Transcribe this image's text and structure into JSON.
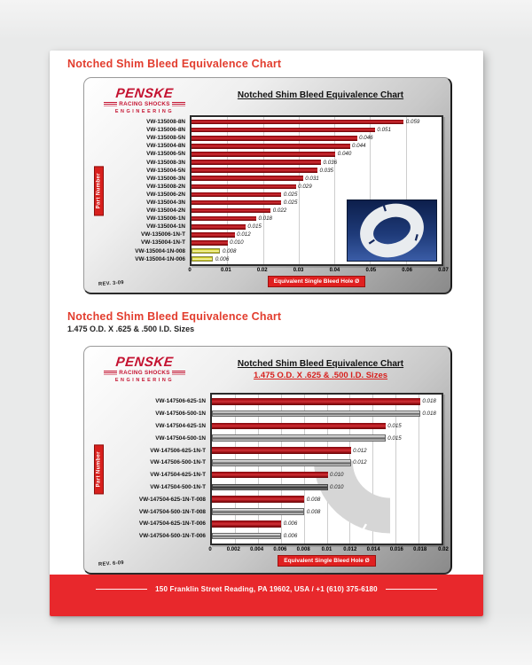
{
  "page": {
    "section1_heading": "Notched Shim Bleed Equivalence Chart",
    "section2_heading": "Notched Shim Bleed Equivalence Chart",
    "section2_subheading": "1.475 O.D. X .625 & .500 I.D. Sizes",
    "footer_text": "150 Franklin Street Reading, PA 19602, USA / +1 (610) 375-6180"
  },
  "logo": {
    "name": "PENSKE",
    "line2": "RACING SHOCKS",
    "line3": "ENGINEERING"
  },
  "colors": {
    "heading_red": "#e23d2e",
    "logo_red": "#c41230",
    "bar_red": "#b5151c",
    "bar_yellow": "#e8e332",
    "bar_silver": "#9e9e9e",
    "axis_box_red": "#e02020",
    "footer_red": "#e8282c",
    "inset_navy": "#1b3264"
  },
  "chart_data": [
    {
      "type": "bar",
      "orientation": "horizontal",
      "title": "Notched Shim Bleed Equivalence Chart",
      "ylabel": "Part Number",
      "xlabel": "Equivalent Single Bleed Hole Ø",
      "xlim": [
        0,
        0.07
      ],
      "xticks": [
        "0",
        "0.01",
        "0.02",
        "0.03",
        "0.04",
        "0.05",
        "0.06",
        "0.07"
      ],
      "grid": true,
      "rev": "REV. 3-09",
      "rows": [
        {
          "label": "VW-135008-8N",
          "value": 0.059,
          "display": "0.059",
          "color": "red"
        },
        {
          "label": "VW-135006-8N",
          "value": 0.051,
          "display": "0.051",
          "color": "red"
        },
        {
          "label": "VW-135008-5N",
          "value": 0.046,
          "display": "0.046",
          "color": "red"
        },
        {
          "label": "VW-135004-8N",
          "value": 0.044,
          "display": "0.044",
          "color": "red"
        },
        {
          "label": "VW-135006-5N",
          "value": 0.04,
          "display": "0.040",
          "color": "red"
        },
        {
          "label": "VW-135008-3N",
          "value": 0.036,
          "display": "0.036",
          "color": "red"
        },
        {
          "label": "VW-135004-5N",
          "value": 0.035,
          "display": "0.035",
          "color": "red"
        },
        {
          "label": "VW-135006-3N",
          "value": 0.031,
          "display": "0.031",
          "color": "red"
        },
        {
          "label": "VW-135008-2N",
          "value": 0.029,
          "display": "0.029",
          "color": "red"
        },
        {
          "label": "VW-135006-2N",
          "value": 0.025,
          "display": "0.025",
          "color": "red"
        },
        {
          "label": "VW-135004-3N",
          "value": 0.025,
          "display": "0.025",
          "color": "red"
        },
        {
          "label": "VW-135004-2N",
          "value": 0.022,
          "display": "0.022",
          "color": "red"
        },
        {
          "label": "VW-135006-1N",
          "value": 0.018,
          "display": "0.018",
          "color": "red"
        },
        {
          "label": "VW-135004-1N",
          "value": 0.015,
          "display": "0.015",
          "color": "red"
        },
        {
          "label": "VW-135006-1N-T",
          "value": 0.012,
          "display": "0.012",
          "color": "red"
        },
        {
          "label": "VW-135004-1N-T",
          "value": 0.01,
          "display": "0.010",
          "color": "red"
        },
        {
          "label": "VW-135004-1N-008",
          "value": 0.008,
          "display": "0.008",
          "color": "yellow"
        },
        {
          "label": "VW-135004-1N-006",
          "value": 0.006,
          "display": "0.006",
          "color": "yellow"
        }
      ]
    },
    {
      "type": "bar",
      "orientation": "horizontal",
      "title": "Notched Shim Bleed Equivalence Chart",
      "subtitle": "1.475 O.D. X .625 & .500 I.D. Sizes",
      "ylabel": "Part Number",
      "xlabel": "Equivalent Single Bleed Hole Ø",
      "xlim": [
        0,
        0.02
      ],
      "xticks": [
        "0",
        "0.002",
        "0.004",
        "0.006",
        "0.008",
        "0.01",
        "0.012",
        "0.014",
        "0.016",
        "0.018",
        "0.02"
      ],
      "grid": true,
      "rev": "REV. 6-09",
      "rows": [
        {
          "label": "VW-147506-625-1N",
          "value": 0.018,
          "display": "0.018",
          "color": "red"
        },
        {
          "label": "VW-147506-500-1N",
          "value": 0.018,
          "display": "0.018",
          "color": "silver"
        },
        {
          "label": "VW-147504-625-1N",
          "value": 0.015,
          "display": "0.015",
          "color": "red"
        },
        {
          "label": "VW-147504-500-1N",
          "value": 0.015,
          "display": "0.015",
          "color": "silver"
        },
        {
          "label": "VW-147506-625-1N-T",
          "value": 0.012,
          "display": "0.012",
          "color": "red"
        },
        {
          "label": "VW-147506-500-1N-T",
          "value": 0.012,
          "display": "0.012",
          "color": "silver"
        },
        {
          "label": "VW-147504-625-1N-T",
          "value": 0.01,
          "display": "0.010",
          "color": "red"
        },
        {
          "label": "VW-147504-500-1N-T",
          "value": 0.01,
          "display": "0.010",
          "color": "darksilver"
        },
        {
          "label": "VW-147504-625-1N-T-008",
          "value": 0.008,
          "display": "0.008",
          "color": "red"
        },
        {
          "label": "VW-147504-500-1N-T-008",
          "value": 0.008,
          "display": "0.008",
          "color": "silver"
        },
        {
          "label": "VW-147504-625-1N-T-006",
          "value": 0.006,
          "display": "0.006",
          "color": "red"
        },
        {
          "label": "VW-147504-500-1N-T-006",
          "value": 0.006,
          "display": "0.006",
          "color": "silver"
        }
      ]
    }
  ]
}
